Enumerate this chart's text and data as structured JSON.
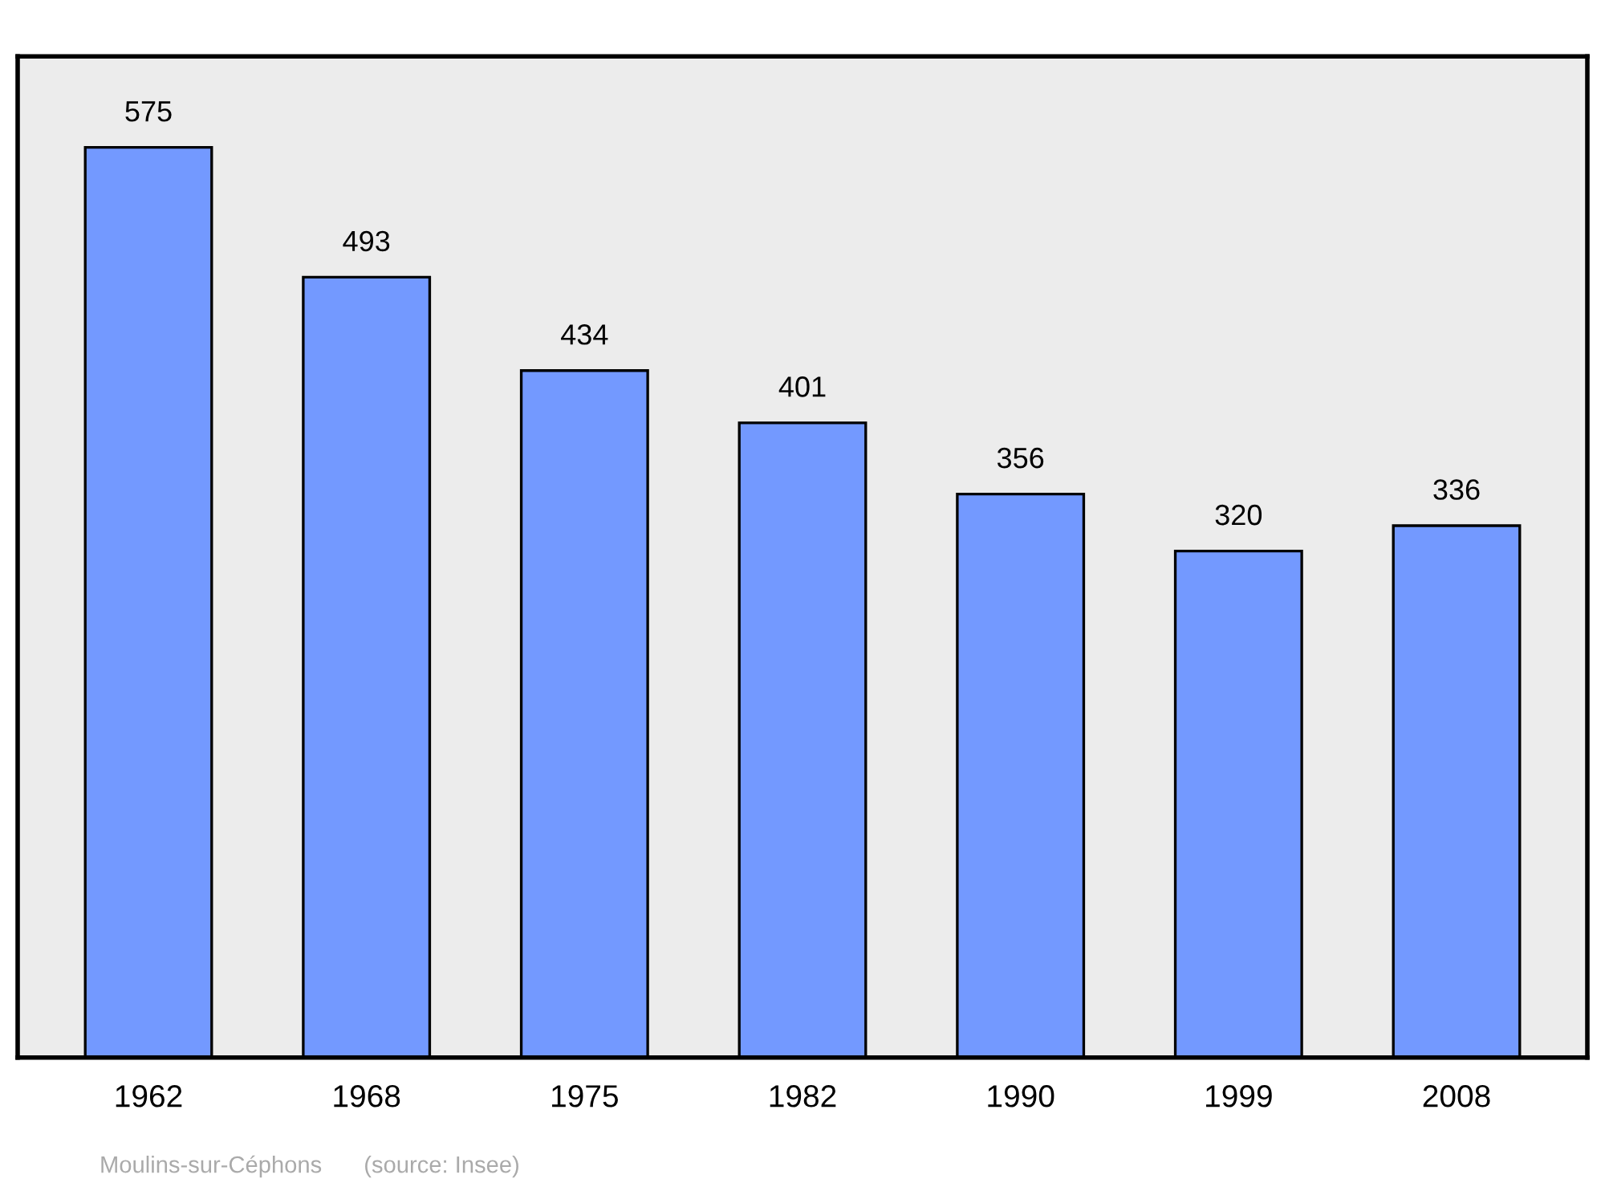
{
  "chart_data": {
    "type": "bar",
    "categories": [
      "1962",
      "1968",
      "1975",
      "1982",
      "1990",
      "1999",
      "2008"
    ],
    "values": [
      575,
      493,
      434,
      401,
      356,
      320,
      336
    ],
    "color": "#7399ff",
    "data_labels": true,
    "grid": false,
    "legend": false,
    "annotations": [
      "Moulins-sur-Céphons",
      "(source: Insee)"
    ]
  }
}
